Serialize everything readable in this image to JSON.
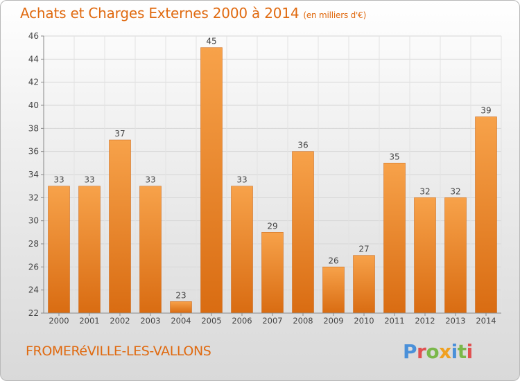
{
  "header": {
    "title": "Achats et Charges Externes 2000 à 2014",
    "subtitle": "(en milliers d'€)"
  },
  "footer": {
    "commune": "FROMERéVILLE-LES-VALLONS",
    "brand": "Proxiti",
    "brand_colors": [
      "#4a90d9",
      "#e05050",
      "#7ab84a",
      "#f0a020",
      "#4a90d9",
      "#7ab84a",
      "#e05050"
    ]
  },
  "chart_data": {
    "type": "bar",
    "categories": [
      "2000",
      "2001",
      "2002",
      "2003",
      "2004",
      "2005",
      "2006",
      "2007",
      "2008",
      "2009",
      "2010",
      "2011",
      "2012",
      "2013",
      "2014"
    ],
    "values": [
      33,
      33,
      37,
      33,
      23,
      45,
      33,
      29,
      36,
      26,
      27,
      35,
      32,
      32,
      39
    ],
    "ylim": [
      22,
      46
    ],
    "yticks": [
      22,
      24,
      26,
      28,
      30,
      32,
      34,
      36,
      38,
      40,
      42,
      44,
      46
    ],
    "grid": true,
    "bar_color": "#f0892a",
    "title": "Achats et Charges Externes 2000 à 2014",
    "xlabel": "",
    "ylabel": ""
  }
}
